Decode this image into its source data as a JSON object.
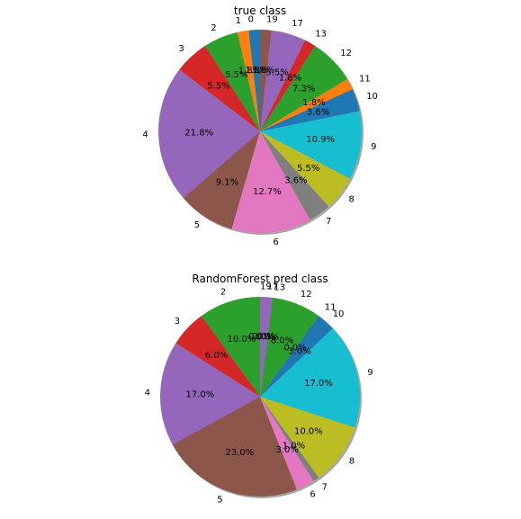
{
  "chart_data": [
    {
      "type": "pie",
      "title": "true class",
      "startangle": 90,
      "shadow": true,
      "slices": [
        {
          "label": "0",
          "value": 1.8,
          "pct_label": "1.8%",
          "color": "#1f77b4"
        },
        {
          "label": "1",
          "value": 1.8,
          "pct_label": "1.8%",
          "color": "#ff7f0e"
        },
        {
          "label": "2",
          "value": 5.5,
          "pct_label": "5.5%",
          "color": "#2ca02c"
        },
        {
          "label": "3",
          "value": 5.5,
          "pct_label": "5.5%",
          "color": "#d62728"
        },
        {
          "label": "4",
          "value": 21.8,
          "pct_label": "21.8%",
          "color": "#9467bd"
        },
        {
          "label": "5",
          "value": 9.1,
          "pct_label": "9.1%",
          "color": "#8c564b"
        },
        {
          "label": "6",
          "value": 12.7,
          "pct_label": "12.7%",
          "color": "#e377c2"
        },
        {
          "label": "7",
          "value": 3.6,
          "pct_label": "3.6%",
          "color": "#7f7f7f"
        },
        {
          "label": "8",
          "value": 5.5,
          "pct_label": "5.5%",
          "color": "#bcbd22"
        },
        {
          "label": "9",
          "value": 10.9,
          "pct_label": "10.9%",
          "color": "#17becf"
        },
        {
          "label": "10",
          "value": 3.6,
          "pct_label": "3.6%",
          "color": "#1f77b4"
        },
        {
          "label": "11",
          "value": 1.8,
          "pct_label": "1.8%",
          "color": "#ff7f0e"
        },
        {
          "label": "12",
          "value": 7.3,
          "pct_label": "7.3%",
          "color": "#2ca02c"
        },
        {
          "label": "13",
          "value": 1.8,
          "pct_label": "1.8%",
          "color": "#d62728"
        },
        {
          "label": "17",
          "value": 5.5,
          "pct_label": "5.5%",
          "color": "#9467bd"
        },
        {
          "label": "19",
          "value": 1.8,
          "pct_label": "1.8%",
          "color": "#8c564b"
        }
      ]
    },
    {
      "type": "pie",
      "title": "RandomForest pred class",
      "startangle": 90,
      "shadow": true,
      "slices": [
        {
          "label": "2",
          "value": 10.0,
          "pct_label": "10.0%",
          "color": "#2ca02c"
        },
        {
          "label": "3",
          "value": 6.0,
          "pct_label": "6.0%",
          "color": "#d62728"
        },
        {
          "label": "4",
          "value": 17.0,
          "pct_label": "17.0%",
          "color": "#9467bd"
        },
        {
          "label": "5",
          "value": 23.0,
          "pct_label": "23.0%",
          "color": "#8c564b"
        },
        {
          "label": "6",
          "value": 3.0,
          "pct_label": "3.0%",
          "color": "#e377c2"
        },
        {
          "label": "7",
          "value": 1.0,
          "pct_label": "1.0%",
          "color": "#7f7f7f"
        },
        {
          "label": "8",
          "value": 10.0,
          "pct_label": "10.0%",
          "color": "#bcbd22"
        },
        {
          "label": "9",
          "value": 17.0,
          "pct_label": "17.0%",
          "color": "#17becf"
        },
        {
          "label": "10",
          "value": 3.0,
          "pct_label": "3.0%",
          "color": "#1f77b4"
        },
        {
          "label": "11",
          "value": 0.0,
          "pct_label": "0.0%",
          "color": "#ff7f0e"
        },
        {
          "label": "12",
          "value": 8.0,
          "pct_label": "8.0%",
          "color": "#2ca02c"
        },
        {
          "label": "13",
          "value": 0.0,
          "pct_label": "0.0%",
          "color": "#d62728"
        },
        {
          "label": "17",
          "value": 2.0,
          "pct_label": "2.0%",
          "color": "#9467bd"
        },
        {
          "label": "19",
          "value": 0.0,
          "pct_label": "0.0%",
          "color": "#8c564b"
        }
      ]
    }
  ]
}
